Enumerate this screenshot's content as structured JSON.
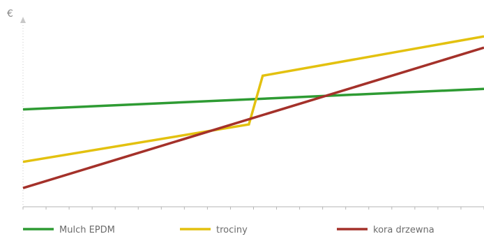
{
  "chart_data": {
    "type": "line",
    "y_unit": "€",
    "title": "",
    "xlabel": "",
    "ylabel": "€",
    "xlim": [
      0,
      100
    ],
    "ylim": [
      0,
      100
    ],
    "grid": false,
    "x_ticks": 20,
    "legend_position": "bottom",
    "series": [
      {
        "name": "Mulch EPDM",
        "color": "#2e9b33",
        "x": [
          0,
          100
        ],
        "y": [
          52,
          63
        ]
      },
      {
        "name": "trociny",
        "color": "#e3c10f",
        "x": [
          0,
          49,
          52,
          100
        ],
        "y": [
          24,
          44,
          70,
          91
        ]
      },
      {
        "name": "kora drzewna",
        "color": "#a4312a",
        "x": [
          0,
          100
        ],
        "y": [
          10,
          85
        ]
      }
    ]
  }
}
